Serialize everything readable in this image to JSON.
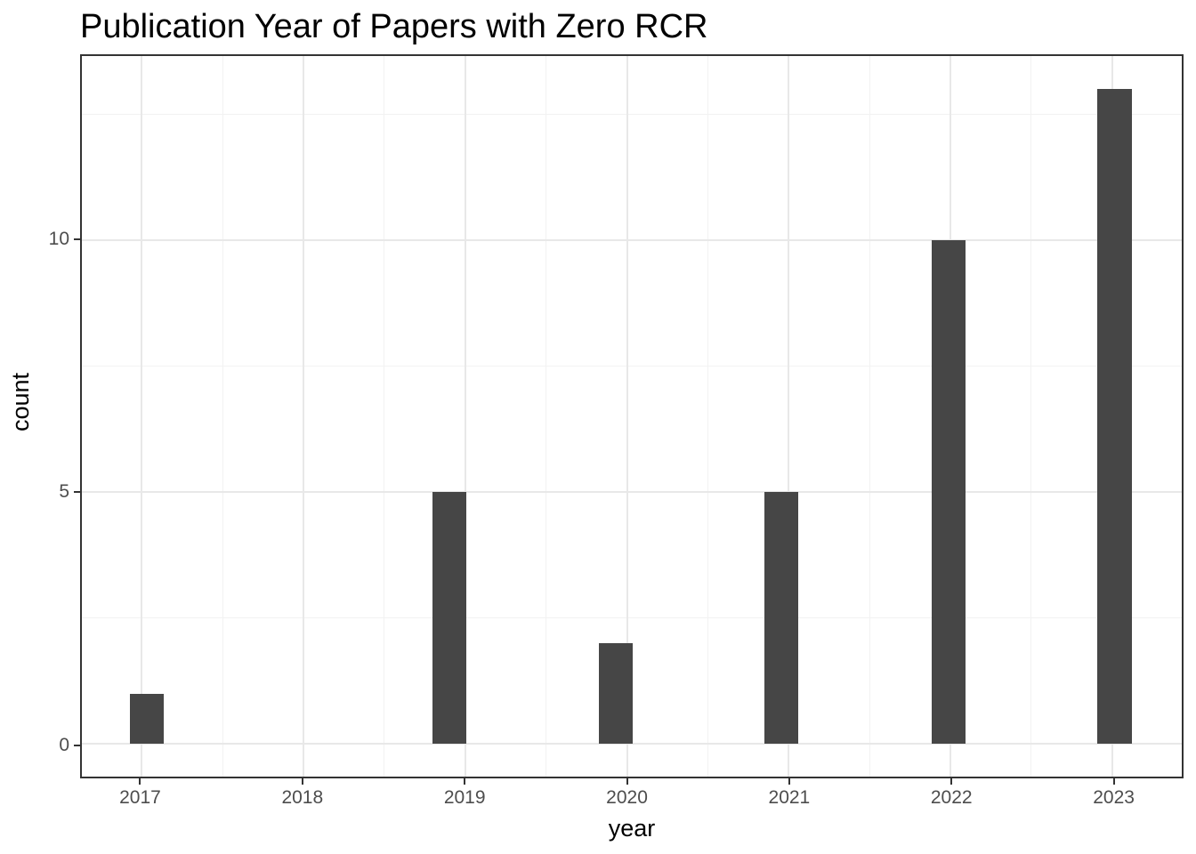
{
  "chart_data": {
    "type": "bar",
    "variant": "histogram",
    "title": "Publication Year of Papers with Zero RCR",
    "xlabel": "year",
    "ylabel": "count",
    "categories": [
      2017,
      2018,
      2019,
      2020,
      2021,
      2022,
      2023
    ],
    "values": [
      1,
      0,
      5,
      2,
      5,
      10,
      13
    ],
    "bars": [
      {
        "year": 2017,
        "count": 1,
        "visual_offset": 0.03
      },
      {
        "year": 2019,
        "count": 5,
        "visual_offset": -0.1
      },
      {
        "year": 2020,
        "count": 2,
        "visual_offset": -0.07
      },
      {
        "year": 2021,
        "count": 5,
        "visual_offset": -0.045
      },
      {
        "year": 2022,
        "count": 10,
        "visual_offset": -0.01
      },
      {
        "year": 2023,
        "count": 13,
        "visual_offset": 0.015
      }
    ],
    "bar_width_years": 0.21,
    "x_ticks": [
      {
        "value": 2017,
        "label": "2017"
      },
      {
        "value": 2018,
        "label": "2018"
      },
      {
        "value": 2019,
        "label": "2019"
      },
      {
        "value": 2020,
        "label": "2020"
      },
      {
        "value": 2021,
        "label": "2021"
      },
      {
        "value": 2022,
        "label": "2022"
      },
      {
        "value": 2023,
        "label": "2023"
      }
    ],
    "y_ticks": [
      {
        "value": 0,
        "label": "0"
      },
      {
        "value": 5,
        "label": "5"
      },
      {
        "value": 10,
        "label": "10"
      }
    ],
    "x_minor": [
      2017.5,
      2018.5,
      2019.5,
      2020.5,
      2021.5,
      2022.5
    ],
    "y_minor": [
      2.5,
      7.5,
      12.5
    ],
    "xlim": [
      2016.63,
      2023.43
    ],
    "ylim": [
      -0.65,
      13.65
    ],
    "grid": true,
    "legend": "none",
    "colors": {
      "bar_fill": "#464646",
      "panel_border": "#333333",
      "grid_major": "#e8e8e8",
      "grid_minor": "#f2f2f2",
      "tick_mark": "#333333",
      "tick_label": "#4d4d4d",
      "title": "#000000",
      "axis_title": "#000000",
      "background": "#ffffff"
    }
  }
}
